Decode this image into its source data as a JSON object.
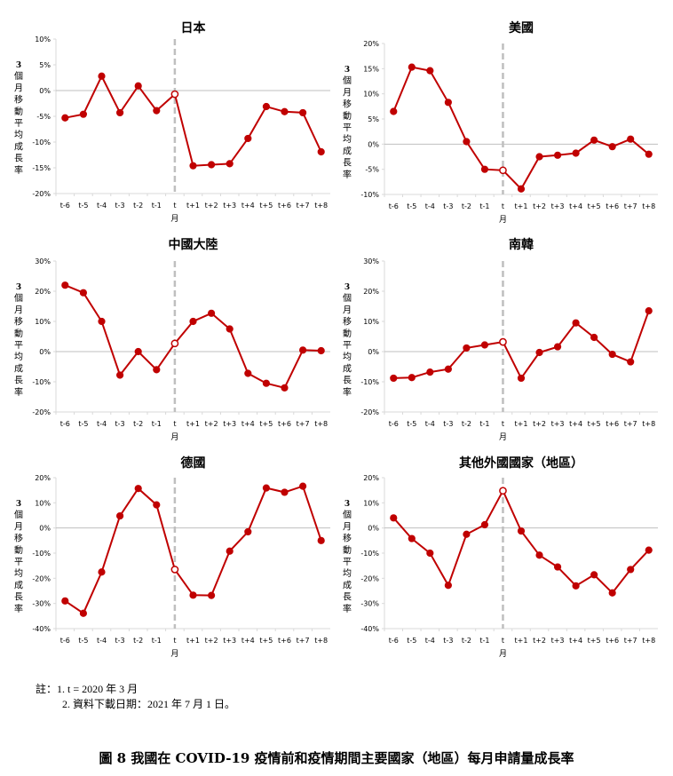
{
  "chart_data": [
    {
      "type": "line",
      "title": "日本",
      "ylabel": "3個月移動平均成長率",
      "xlabel": "月",
      "categories": [
        "t-6",
        "t-5",
        "t-4",
        "t-3",
        "t-2",
        "t-1",
        "t",
        "t+1",
        "t+2",
        "t+3",
        "t+4",
        "t+5",
        "t+6",
        "t+7",
        "t+8"
      ],
      "series": [
        {
          "name": "日本",
          "values": [
            -5.3,
            -4.6,
            2.8,
            -4.3,
            0.9,
            -3.9,
            -0.7,
            -14.6,
            -14.4,
            -14.2,
            -9.3,
            -3.1,
            -4.1,
            -4.3,
            -11.9
          ]
        }
      ],
      "ylim": [
        -20,
        10
      ],
      "yticks": [
        "10%",
        "5%",
        "0%",
        "-5%",
        "-10%",
        "-15%",
        "-20%"
      ],
      "ytick_values": [
        10,
        5,
        0,
        -5,
        -10,
        -15,
        -20
      ]
    },
    {
      "type": "line",
      "title": "美國",
      "ylabel": "3個月移動平均成長率",
      "xlabel": "月",
      "categories": [
        "t-6",
        "t-5",
        "t-4",
        "t-3",
        "t-2",
        "t-1",
        "t",
        "t+1",
        "t+2",
        "t+3",
        "t+4",
        "t+5",
        "t+6",
        "t+7",
        "t+8"
      ],
      "series": [
        {
          "name": "美國",
          "values": [
            6.5,
            15.3,
            14.6,
            8.3,
            0.5,
            -5.0,
            -5.2,
            -8.9,
            -2.5,
            -2.2,
            -1.8,
            0.8,
            -0.5,
            1.0,
            -2.0
          ]
        }
      ],
      "ylim": [
        -10,
        20
      ],
      "yticks": [
        "20%",
        "15%",
        "10%",
        "5%",
        "0%",
        "-5%",
        "-10%"
      ],
      "ytick_values": [
        20,
        15,
        10,
        5,
        0,
        -5,
        -10
      ]
    },
    {
      "type": "line",
      "title": "中國大陸",
      "ylabel": "3個月移動平均成長率",
      "xlabel": "月",
      "categories": [
        "t-6",
        "t-5",
        "t-4",
        "t-3",
        "t-2",
        "t-1",
        "t",
        "t+1",
        "t+2",
        "t+3",
        "t+4",
        "t+5",
        "t+6",
        "t+7",
        "t+8"
      ],
      "series": [
        {
          "name": "中國大陸",
          "values": [
            22.0,
            19.5,
            10.0,
            -7.8,
            0.0,
            -6.0,
            2.7,
            10.0,
            12.7,
            7.5,
            -7.2,
            -10.5,
            -12.0,
            0.5,
            0.3
          ]
        }
      ],
      "ylim": [
        -20,
        30
      ],
      "yticks": [
        "30%",
        "20%",
        "10%",
        "0%",
        "-10%",
        "-20%"
      ],
      "ytick_values": [
        30,
        20,
        10,
        0,
        -10,
        -20
      ]
    },
    {
      "type": "line",
      "title": "南韓",
      "ylabel": "3個月移動平均成長率",
      "xlabel": "月",
      "categories": [
        "t-6",
        "t-5",
        "t-4",
        "t-3",
        "t-2",
        "t-1",
        "t",
        "t+1",
        "t+2",
        "t+3",
        "t+4",
        "t+5",
        "t+6",
        "t+7",
        "t+8"
      ],
      "series": [
        {
          "name": "南韓",
          "values": [
            -8.8,
            -8.6,
            -6.8,
            -5.8,
            1.2,
            2.2,
            3.2,
            -8.8,
            -0.3,
            1.6,
            9.5,
            4.7,
            -0.9,
            -3.4,
            13.5
          ]
        }
      ],
      "ylim": [
        -20,
        30
      ],
      "yticks": [
        "30%",
        "20%",
        "10%",
        "0%",
        "-10%",
        "-20%"
      ],
      "ytick_values": [
        30,
        20,
        10,
        0,
        -10,
        -20
      ]
    },
    {
      "type": "line",
      "title": "德國",
      "ylabel": "3個月移動平均成長率",
      "xlabel": "月",
      "categories": [
        "t-6",
        "t-5",
        "t-4",
        "t-3",
        "t-2",
        "t-1",
        "t",
        "t+1",
        "t+2",
        "t+3",
        "t+4",
        "t+5",
        "t+6",
        "t+7",
        "t+8"
      ],
      "series": [
        {
          "name": "德國",
          "values": [
            -29.0,
            -33.9,
            -17.5,
            4.8,
            15.7,
            9.2,
            -16.5,
            -26.7,
            -26.8,
            -9.2,
            -1.5,
            15.9,
            14.2,
            16.6,
            -5.0
          ]
        }
      ],
      "ylim": [
        -40,
        20
      ],
      "yticks": [
        "20%",
        "10%",
        "0%",
        "-10%",
        "-20%",
        "-30%",
        "-40%"
      ],
      "ytick_values": [
        20,
        10,
        0,
        -10,
        -20,
        -30,
        -40
      ]
    },
    {
      "type": "line",
      "title": "其他外國國家（地區）",
      "ylabel": "3個月移動平均成長率",
      "xlabel": "月",
      "categories": [
        "t-6",
        "t-5",
        "t-4",
        "t-3",
        "t-2",
        "t-1",
        "t",
        "t+1",
        "t+2",
        "t+3",
        "t+4",
        "t+5",
        "t+6",
        "t+7",
        "t+8"
      ],
      "series": [
        {
          "name": "其他外國國家（地區）",
          "values": [
            4.0,
            -4.2,
            -10.0,
            -22.8,
            -2.5,
            1.3,
            14.8,
            -1.2,
            -10.8,
            -15.5,
            -23.0,
            -18.6,
            -25.8,
            -16.5,
            -8.8
          ]
        }
      ],
      "ylim": [
        -40,
        20
      ],
      "yticks": [
        "20%",
        "10%",
        "0%",
        "-10%",
        "-20%",
        "-30%",
        "-40%"
      ],
      "ytick_values": [
        20,
        10,
        0,
        -10,
        -20,
        -30,
        -40
      ]
    }
  ],
  "colors": {
    "line": "#c00000",
    "marker": "#c00000",
    "event_line": "#bfbfbf",
    "axis": "#d9d9d9",
    "zero_line": "#bfbfbf"
  },
  "notes": {
    "line1": "註：1. t = 2020 年 3 月",
    "line2": "2.  資料下載日期：2021 年 7 月 1 日。"
  },
  "caption": "圖 8  我國在 COVID-19 疫情前和疫情期間主要國家（地區）每月申請量成長率"
}
